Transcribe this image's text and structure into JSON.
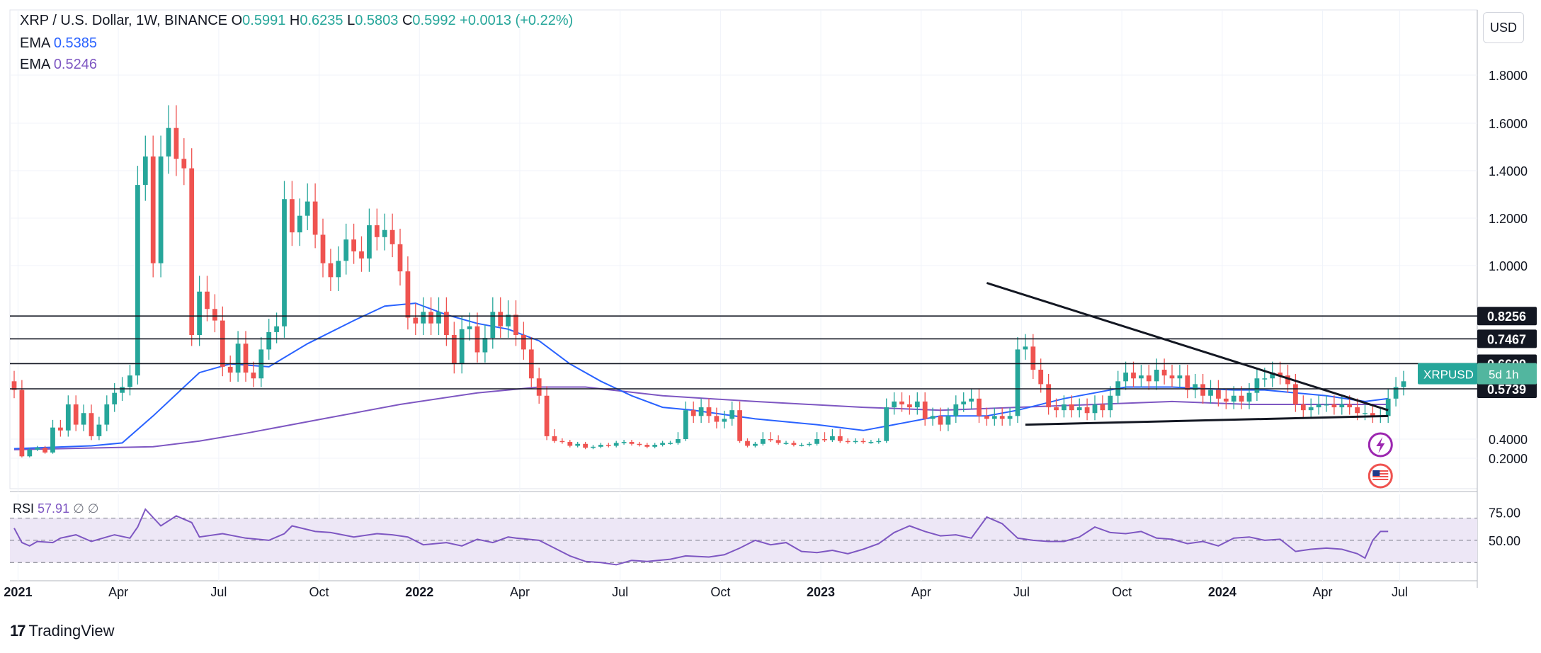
{
  "header": {
    "symbol": "XRP / U.S. Dollar, 1W, BINANCE",
    "o_label": "O",
    "o": "0.5991",
    "h_label": "H",
    "h": "0.6235",
    "l_label": "L",
    "l": "0.5803",
    "c_label": "C",
    "c": "0.5992",
    "change": "+0.0013 (+0.22%)"
  },
  "indicators": [
    {
      "label": "EMA",
      "value": "0.5385",
      "color": "#2962ff"
    },
    {
      "label": "EMA",
      "value": "0.5246",
      "color": "#7e57c2"
    }
  ],
  "currency_button": "USD",
  "rsi": {
    "label": "RSI",
    "value": "57.91",
    "extra": "∅ ∅"
  },
  "price_tags": {
    "symbol": "XRPUSD",
    "countdown": "5d 1h"
  },
  "watermark": "TradingView",
  "colors": {
    "up": "#26a69a",
    "down": "#ef5350",
    "ema_fast": "#2962ff",
    "ema_slow": "#7e57c2",
    "rsi": "#7e57c2",
    "rsi_band": "#ede7f6"
  },
  "chart_data": {
    "type": "candlestick",
    "symbol": "XRP / U.S. Dollar",
    "interval": "1W",
    "ylim": [
      0.1,
      2.1
    ],
    "y_ticks": [
      "1.8000",
      "1.6000",
      "1.4000",
      "1.2000",
      "1.0000",
      "0.4000",
      "0.2000"
    ],
    "x_ticks": [
      "2021",
      "Apr",
      "Jul",
      "Oct",
      "2022",
      "Apr",
      "Jul",
      "Oct",
      "2023",
      "Apr",
      "Jul",
      "Oct",
      "2024",
      "Apr",
      "Jul"
    ],
    "x_ticks_bold": [
      "2021",
      "2022",
      "2023",
      "2024"
    ],
    "horizontal_levels": [
      {
        "value": 0.8256,
        "label": "0.8256"
      },
      {
        "value": 0.7467,
        "label": "0.7467"
      },
      {
        "value": 0.6609,
        "label": "0.6609"
      },
      {
        "value": 0.5739,
        "label": "0.5739"
      }
    ],
    "last_price": 0.5992,
    "weekly_closes": [
      0.57,
      0.22,
      0.29,
      0.31,
      0.26,
      0.44,
      0.43,
      0.52,
      0.45,
      0.49,
      0.41,
      0.45,
      0.52,
      0.56,
      0.58,
      0.62,
      1.34,
      1.46,
      1.01,
      1.46,
      1.58,
      1.45,
      1.41,
      0.76,
      0.91,
      0.85,
      0.81,
      0.65,
      0.63,
      0.73,
      0.63,
      0.61,
      0.71,
      0.77,
      0.79,
      1.28,
      1.14,
      1.21,
      1.27,
      1.13,
      1.01,
      0.96,
      1.02,
      1.11,
      1.06,
      1.03,
      1.17,
      1.12,
      1.15,
      1.09,
      0.98,
      0.82,
      0.8,
      0.84,
      0.8,
      0.84,
      0.76,
      0.66,
      0.78,
      0.79,
      0.7,
      0.75,
      0.84,
      0.79,
      0.83,
      0.76,
      0.71,
      0.61,
      0.55,
      0.41,
      0.38,
      0.37,
      0.33,
      0.35,
      0.31,
      0.32,
      0.34,
      0.33,
      0.36,
      0.37,
      0.35,
      0.34,
      0.32,
      0.34,
      0.36,
      0.36,
      0.4,
      0.5,
      0.48,
      0.51,
      0.48,
      0.46,
      0.47,
      0.5,
      0.38,
      0.33,
      0.35,
      0.4,
      0.39,
      0.36,
      0.36,
      0.34,
      0.34,
      0.35,
      0.4,
      0.39,
      0.41,
      0.38,
      0.37,
      0.38,
      0.37,
      0.37,
      0.38,
      0.51,
      0.53,
      0.52,
      0.51,
      0.53,
      0.47,
      0.48,
      0.45,
      0.48,
      0.52,
      0.53,
      0.54,
      0.48,
      0.47,
      0.48,
      0.47,
      0.48,
      0.71,
      0.72,
      0.64,
      0.59,
      0.51,
      0.5,
      0.52,
      0.5,
      0.51,
      0.49,
      0.52,
      0.5,
      0.55,
      0.6,
      0.63,
      0.61,
      0.62,
      0.6,
      0.64,
      0.62,
      0.61,
      0.62,
      0.57,
      0.59,
      0.55,
      0.57,
      0.54,
      0.53,
      0.55,
      0.53,
      0.56,
      0.61,
      0.61,
      0.63,
      0.62,
      0.59,
      0.52,
      0.5,
      0.51,
      0.52,
      0.52,
      0.51,
      0.52,
      0.51,
      0.49,
      0.49,
      0.48,
      0.48,
      0.54,
      0.58,
      0.6
    ],
    "ema_fast_points": [
      [
        0,
        0.3
      ],
      [
        10,
        0.33
      ],
      [
        14,
        0.36
      ],
      [
        18,
        0.48
      ],
      [
        24,
        0.63
      ],
      [
        28,
        0.66
      ],
      [
        33,
        0.65
      ],
      [
        38,
        0.73
      ],
      [
        44,
        0.81
      ],
      [
        48,
        0.86
      ],
      [
        52,
        0.87
      ],
      [
        56,
        0.83
      ],
      [
        60,
        0.8
      ],
      [
        64,
        0.78
      ],
      [
        68,
        0.74
      ],
      [
        72,
        0.66
      ],
      [
        76,
        0.6
      ],
      [
        80,
        0.55
      ],
      [
        84,
        0.51
      ],
      [
        88,
        0.5
      ],
      [
        96,
        0.47
      ],
      [
        104,
        0.45
      ],
      [
        110,
        0.43
      ],
      [
        114,
        0.45
      ],
      [
        120,
        0.48
      ],
      [
        126,
        0.48
      ],
      [
        130,
        0.5
      ],
      [
        136,
        0.54
      ],
      [
        140,
        0.56
      ],
      [
        144,
        0.58
      ],
      [
        150,
        0.58
      ],
      [
        158,
        0.57
      ],
      [
        162,
        0.57
      ],
      [
        166,
        0.56
      ],
      [
        170,
        0.55
      ],
      [
        175,
        0.53
      ],
      [
        178,
        0.54
      ]
    ],
    "ema_slow_points": [
      [
        0,
        0.29
      ],
      [
        18,
        0.32
      ],
      [
        24,
        0.38
      ],
      [
        30,
        0.42
      ],
      [
        40,
        0.47
      ],
      [
        50,
        0.52
      ],
      [
        60,
        0.56
      ],
      [
        68,
        0.58
      ],
      [
        74,
        0.58
      ],
      [
        84,
        0.55
      ],
      [
        96,
        0.53
      ],
      [
        110,
        0.51
      ],
      [
        120,
        0.5
      ],
      [
        130,
        0.51
      ],
      [
        140,
        0.52
      ],
      [
        150,
        0.53
      ],
      [
        160,
        0.52
      ],
      [
        170,
        0.52
      ],
      [
        178,
        0.52
      ]
    ],
    "trendlines": [
      {
        "name": "resistance",
        "from": [
          126,
          0.94
        ],
        "to": [
          178,
          0.5
        ]
      },
      {
        "name": "support",
        "from": [
          131,
          0.45
        ],
        "to": [
          178,
          0.48
        ]
      }
    ],
    "rsi": {
      "ylim": [
        20,
        85
      ],
      "levels": [
        30,
        50,
        70
      ],
      "tick_labels": [
        "75.00",
        "50.00"
      ],
      "points": [
        [
          0,
          61
        ],
        [
          1,
          48
        ],
        [
          2,
          45
        ],
        [
          3,
          49
        ],
        [
          5,
          48
        ],
        [
          6,
          52
        ],
        [
          8,
          55
        ],
        [
          10,
          49
        ],
        [
          12,
          53
        ],
        [
          13,
          55
        ],
        [
          15,
          52
        ],
        [
          16,
          62
        ],
        [
          17,
          78
        ],
        [
          19,
          63
        ],
        [
          21,
          72
        ],
        [
          23,
          66
        ],
        [
          24,
          53
        ],
        [
          27,
          56
        ],
        [
          30,
          52
        ],
        [
          33,
          50
        ],
        [
          35,
          56
        ],
        [
          36,
          63
        ],
        [
          39,
          58
        ],
        [
          41,
          57
        ],
        [
          44,
          53
        ],
        [
          47,
          56
        ],
        [
          49,
          55
        ],
        [
          51,
          53
        ],
        [
          53,
          46
        ],
        [
          56,
          48
        ],
        [
          58,
          45
        ],
        [
          60,
          51
        ],
        [
          62,
          48
        ],
        [
          64,
          53
        ],
        [
          65,
          52
        ],
        [
          68,
          50
        ],
        [
          70,
          43
        ],
        [
          72,
          36
        ],
        [
          74,
          31
        ],
        [
          76,
          30
        ],
        [
          78,
          28
        ],
        [
          80,
          32
        ],
        [
          82,
          31
        ],
        [
          85,
          33
        ],
        [
          87,
          36
        ],
        [
          90,
          35
        ],
        [
          92,
          37
        ],
        [
          94,
          43
        ],
        [
          96,
          50
        ],
        [
          98,
          46
        ],
        [
          100,
          48
        ],
        [
          102,
          40
        ],
        [
          104,
          39
        ],
        [
          106,
          41
        ],
        [
          108,
          38
        ],
        [
          110,
          42
        ],
        [
          112,
          47
        ],
        [
          114,
          57
        ],
        [
          116,
          63
        ],
        [
          118,
          58
        ],
        [
          120,
          54
        ],
        [
          122,
          55
        ],
        [
          124,
          52
        ],
        [
          126,
          71
        ],
        [
          128,
          65
        ],
        [
          130,
          52
        ],
        [
          132,
          50
        ],
        [
          134,
          49
        ],
        [
          136,
          49
        ],
        [
          138,
          53
        ],
        [
          140,
          62
        ],
        [
          142,
          57
        ],
        [
          144,
          56
        ],
        [
          146,
          58
        ],
        [
          148,
          52
        ],
        [
          150,
          51
        ],
        [
          152,
          47
        ],
        [
          154,
          49
        ],
        [
          156,
          45
        ],
        [
          158,
          52
        ],
        [
          160,
          53
        ],
        [
          162,
          50
        ],
        [
          164,
          51
        ],
        [
          166,
          40
        ],
        [
          168,
          42
        ],
        [
          170,
          43
        ],
        [
          172,
          42
        ],
        [
          174,
          38
        ],
        [
          175,
          34
        ],
        [
          176,
          50
        ],
        [
          177,
          58
        ],
        [
          178,
          58
        ]
      ]
    }
  }
}
